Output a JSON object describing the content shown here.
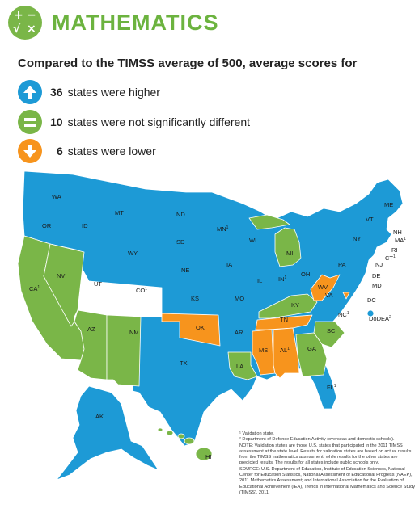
{
  "header": {
    "title": "MATHEMATICS",
    "icon": "math-operations-icon"
  },
  "subtitle": "Compared to the TIMSS average of 500, average scores for",
  "legend": [
    {
      "count": "36",
      "text": "states were higher",
      "color": "#1d9ad6",
      "icon": "arrow-up-icon"
    },
    {
      "count": "10",
      "text": "states were not significantly different",
      "color": "#7ab648",
      "icon": "equals-icon"
    },
    {
      "count": "6",
      "text": "states were lower",
      "color": "#f7941d",
      "icon": "arrow-down-icon"
    }
  ],
  "colors": {
    "higher": "#1d9ad6",
    "same": "#7ab648",
    "lower": "#f7941d"
  },
  "states": {
    "WA": "WA",
    "OR": "OR",
    "ID": "ID",
    "MT": "MT",
    "WY": "WY",
    "ND": "ND",
    "SD": "SD",
    "NE": "NE",
    "KS": "KS",
    "OK": "OK",
    "TX": "TX",
    "MN": "MN",
    "MN_sup": "1",
    "IA": "IA",
    "MO": "MO",
    "AR": "AR",
    "LA": "LA",
    "WI": "WI",
    "IL": "IL",
    "MI": "MI",
    "IN": "IN",
    "IN_sup": "1",
    "OH": "OH",
    "KY": "KY",
    "TN": "TN",
    "MS": "MS",
    "AL": "AL",
    "AL_sup": "1",
    "GA": "GA",
    "FL": "FL",
    "FL_sup": "1",
    "SC": "SC",
    "NC": "NC",
    "NC_sup": "1",
    "VA": "VA",
    "WV": "WV",
    "PA": "PA",
    "NY": "NY",
    "VT": "VT",
    "NH": "NH",
    "ME": "ME",
    "MA": "MA",
    "MA_sup": "1",
    "RI": "RI",
    "CT": "CT",
    "CT_sup": "1",
    "NJ": "NJ",
    "DE": "DE",
    "MD": "MD",
    "DC": "DC",
    "DoDEA": "DoDEA",
    "DoDEA_sup": "2",
    "CA": "CA",
    "CA_sup": "1",
    "NV": "NV",
    "UT": "UT",
    "CO": "CO",
    "CO_sup": "1",
    "AZ": "AZ",
    "NM": "NM",
    "AK": "AK",
    "HI": "HI"
  },
  "notes": {
    "n1": "¹ Validation state.",
    "n2": "² Department of Defense Education Activity (overseas and domestic schools).",
    "n3": "NOTE: Validation states are those U.S. states that participated in the 2011 TIMSS assessment at the state level. Results for validation states are based on actual results from the TIMSS mathematics assessment, while results for the other states are predicted results. The results for all states include public schools only.",
    "n4": "SOURCE: U.S. Department of Education, Institute of Education Sciences, National Center for Education Statistics, National Assessment of Educational Progress (NAEP), 2011 Mathematics Assessment; and International Association for the Evaluation of Educational Achievement (IEA), Trends in International Mathematics and Science Study (TIMSS), 2011."
  }
}
